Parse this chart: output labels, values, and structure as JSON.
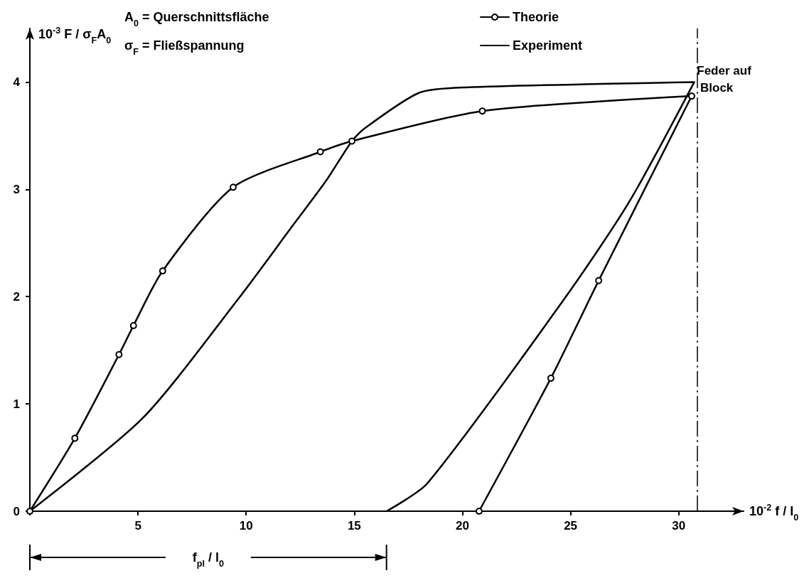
{
  "chart_data": {
    "type": "line",
    "xlabel": "10$^{-2}$ f / l$_{0}$",
    "ylabel": "10$^{-3}$ F / σ$_{F}$A$_{0}$",
    "xlim": [
      0,
      33
    ],
    "xticks": [
      {
        "value": 0,
        "label": null
      },
      5,
      10,
      15,
      20,
      25,
      30
    ],
    "ylim": [
      0,
      4.5
    ],
    "yticks": [
      0,
      1,
      2,
      3,
      4
    ],
    "grid": false,
    "legend": "top right",
    "series": [
      {
        "name": "Theorie",
        "color": "#000000",
        "marker": "circle",
        "x": [
          0,
          2.08,
          4.12,
          4.79,
          6.14,
          9.4,
          13.43,
          14.89,
          20.92,
          30.6,
          26.3,
          24.09,
          20.77
        ],
        "values": [
          0,
          0.68,
          1.46,
          1.73,
          2.24,
          3.02,
          3.35,
          3.45,
          3.73,
          3.87,
          2.15,
          1.24,
          0
        ]
      },
      {
        "name": "Experiment",
        "color": "#000000",
        "marker": "none",
        "x": [
          0,
          5.23,
          9.64,
          12.22,
          13.73,
          14.89,
          15.49,
          18.0,
          20.14,
          30.72,
          27.7,
          24.68,
          18.38,
          16.49
        ],
        "values": [
          0,
          0.87,
          1.98,
          2.68,
          3.09,
          3.45,
          3.57,
          3.9,
          3.95,
          4.0,
          2.88,
          1.97,
          0.26,
          0
        ]
      }
    ],
    "ref_lines": [
      {
        "axis": "x",
        "value": 30.84,
        "label": "Feder auf Block",
        "line_style": "dashed",
        "color": "#000000"
      }
    ],
    "annotations": [
      "A$_{0}$ = Querschnittsfläche",
      "σ$_{F}$ = Fließspannung",
      "f$_{pl}$ / l$_{0}$"
    ]
  }
}
